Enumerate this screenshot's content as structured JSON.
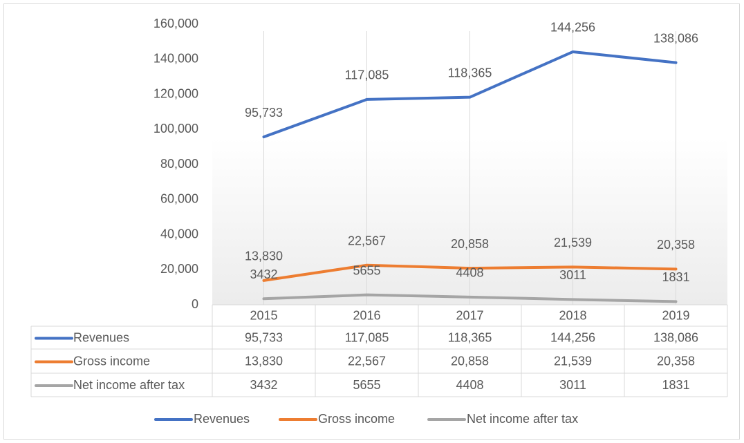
{
  "chart_data": {
    "type": "line",
    "categories": [
      "2015",
      "2016",
      "2017",
      "2018",
      "2019"
    ],
    "series": [
      {
        "name": "Revenues",
        "color": "#4472c4",
        "values": [
          95733,
          117085,
          118365,
          144256,
          138086
        ],
        "value_labels": [
          "95,733",
          "117,085",
          "118,365",
          "144,256",
          "138,086"
        ]
      },
      {
        "name": "Gross income",
        "color": "#ed7d31",
        "values": [
          13830,
          22567,
          20858,
          21539,
          20358
        ],
        "value_labels": [
          "13,830",
          "22,567",
          "20,858",
          "21,539",
          "20,358"
        ]
      },
      {
        "name": "Net income after tax",
        "color": "#a5a5a5",
        "values": [
          3432,
          5655,
          4408,
          3011,
          1831
        ]
      }
    ],
    "ylim": [
      0,
      160000
    ],
    "yticks": [
      0,
      {
        "value": 20000,
        "label": "20,000"
      },
      {
        "value": 40000,
        "label": "40,000"
      },
      {
        "value": 60000,
        "label": "60,000"
      },
      {
        "value": 80000,
        "label": "80,000"
      },
      {
        "value": 100000,
        "label": "100,000"
      },
      {
        "value": 120000,
        "label": "120,000"
      },
      {
        "value": 140000,
        "label": "140,000"
      },
      {
        "value": 160000,
        "label": "160,000"
      }
    ],
    "data_table": true,
    "legend": "bottom"
  }
}
